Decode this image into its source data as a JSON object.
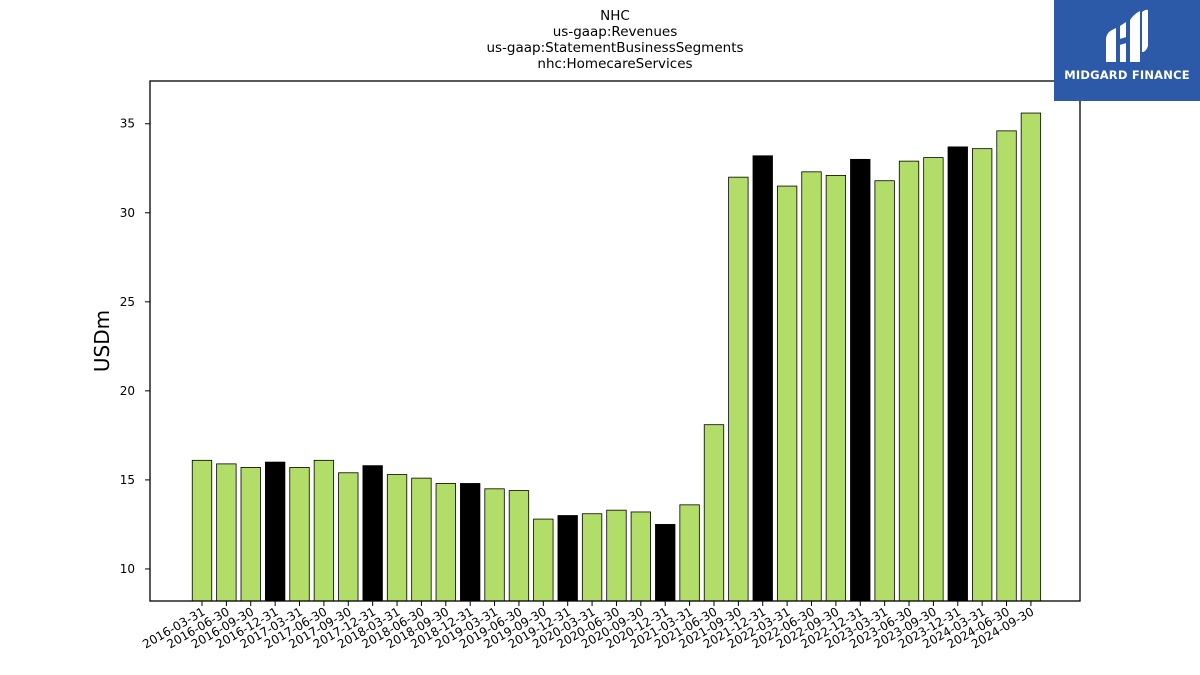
{
  "logo": {
    "text": "MIDGARD FINANCE",
    "background": "#2c5aa8"
  },
  "chart_data": {
    "type": "bar",
    "title_lines": [
      "NHC",
      "us-gaap:Revenues",
      "us-gaap:StatementBusinessSegments",
      "nhc:HomecareServices"
    ],
    "xlabel": "",
    "ylabel": "USDm",
    "ylim": [
      8.2,
      37.4
    ],
    "yticks": [
      10,
      15,
      20,
      25,
      30,
      35
    ],
    "grid": false,
    "colors": {
      "quarter": "#b2dd68",
      "year_end": "#000000",
      "edge": "#000000"
    },
    "categories": [
      "2016-03-31",
      "2016-06-30",
      "2016-09-30",
      "2016-12-31",
      "2017-03-31",
      "2017-06-30",
      "2017-09-30",
      "2017-12-31",
      "2018-03-31",
      "2018-06-30",
      "2018-09-30",
      "2018-12-31",
      "2019-03-31",
      "2019-06-30",
      "2019-09-30",
      "2019-12-31",
      "2020-03-31",
      "2020-06-30",
      "2020-09-30",
      "2020-12-31",
      "2021-03-31",
      "2021-06-30",
      "2021-09-30",
      "2021-12-31",
      "2022-03-31",
      "2022-06-30",
      "2022-09-30",
      "2022-12-31",
      "2023-03-31",
      "2023-06-30",
      "2023-09-30",
      "2023-12-31",
      "2024-03-31",
      "2024-06-30",
      "2024-09-30"
    ],
    "values": [
      16.1,
      15.9,
      15.7,
      16.0,
      15.7,
      16.1,
      15.4,
      15.8,
      15.3,
      15.1,
      14.8,
      14.8,
      14.5,
      14.4,
      12.8,
      13.0,
      13.1,
      13.3,
      13.2,
      12.5,
      13.6,
      18.1,
      32.0,
      33.2,
      31.5,
      32.3,
      32.1,
      33.0,
      31.8,
      32.9,
      33.1,
      33.7,
      33.6,
      34.6,
      35.6
    ]
  }
}
